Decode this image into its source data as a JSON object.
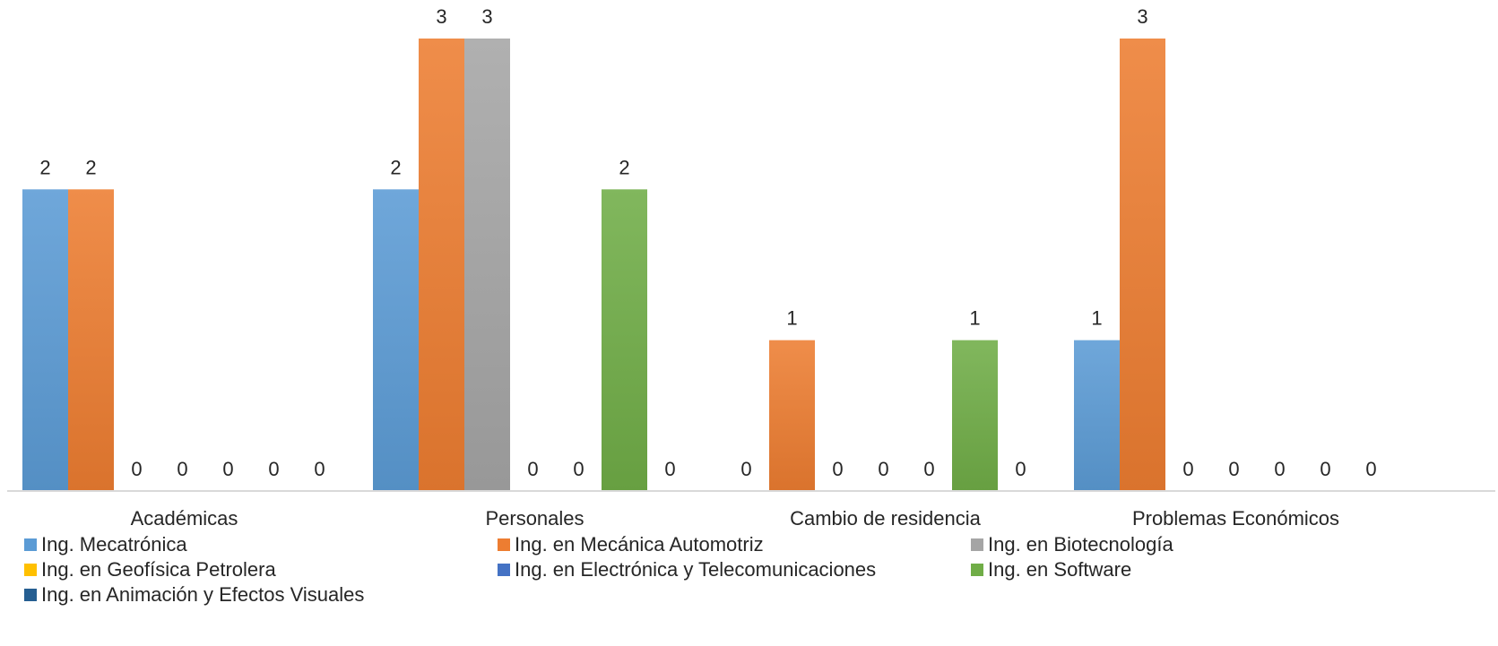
{
  "chart_data": {
    "type": "bar",
    "categories": [
      "Académicas",
      "Personales",
      "Cambio de residencia",
      "Problemas Económicos"
    ],
    "series": [
      {
        "name": "Ing. Mecatrónica",
        "color": "#5B9BD5",
        "values": [
          2,
          2,
          0,
          1
        ]
      },
      {
        "name": "Ing. en Mecánica Automotriz",
        "color": "#ED7D31",
        "values": [
          2,
          3,
          1,
          3
        ]
      },
      {
        "name": "Ing. en Biotecnología",
        "color": "#A5A5A5",
        "values": [
          0,
          3,
          0,
          0
        ]
      },
      {
        "name": "Ing. en Geofísica Petrolera",
        "color": "#FFC000",
        "values": [
          0,
          0,
          0,
          0
        ]
      },
      {
        "name": "Ing. en Electrónica y Telecomunicaciones",
        "color": "#4472C4",
        "values": [
          0,
          0,
          0,
          0
        ]
      },
      {
        "name": "Ing. en Software",
        "color": "#70AD47",
        "values": [
          0,
          2,
          1,
          0
        ]
      },
      {
        "name": "Ing. en Animación y Efectos Visuales",
        "color": "#255E91",
        "values": [
          0,
          0,
          0,
          0
        ]
      }
    ],
    "ylim": [
      0,
      3
    ],
    "grid": false,
    "data_labels": true,
    "legend_position": "bottom"
  }
}
